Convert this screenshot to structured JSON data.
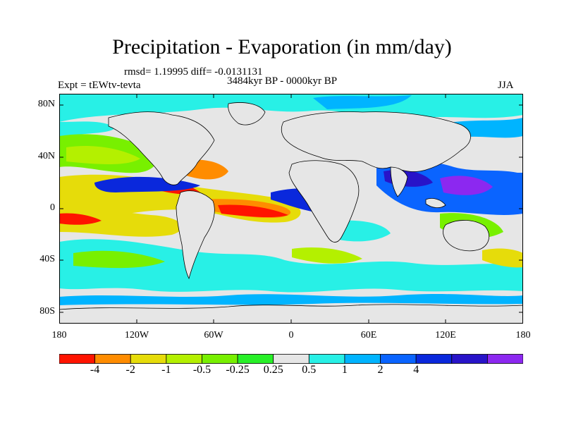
{
  "title": "Precipitation - Evaporation (in mm/day)",
  "stats": "rmsd= 1.19995 diff= -0.0131131",
  "period": "3484kyr BP - 0000kyr BP",
  "experiment": "Expt = tEWtv-tevta",
  "season": "JJA",
  "lat_labels": [
    "80N",
    "40N",
    "0",
    "40S",
    "80S"
  ],
  "lon_labels": [
    "180",
    "120W",
    "60W",
    "0",
    "60E",
    "120E",
    "180"
  ],
  "colorbar": {
    "colors": [
      "#ff1400",
      "#ff8c00",
      "#e6dc0a",
      "#b4f000",
      "#78f000",
      "#28f028",
      "#e6e6e6",
      "#28f0e6",
      "#00b4ff",
      "#0a64ff",
      "#0a28dc",
      "#2814c8",
      "#8c28f0"
    ],
    "labels": [
      "-4",
      "-2",
      "-1",
      "-0.5",
      "-0.25",
      "0.25",
      "0.5",
      "1",
      "2",
      "4"
    ]
  }
}
